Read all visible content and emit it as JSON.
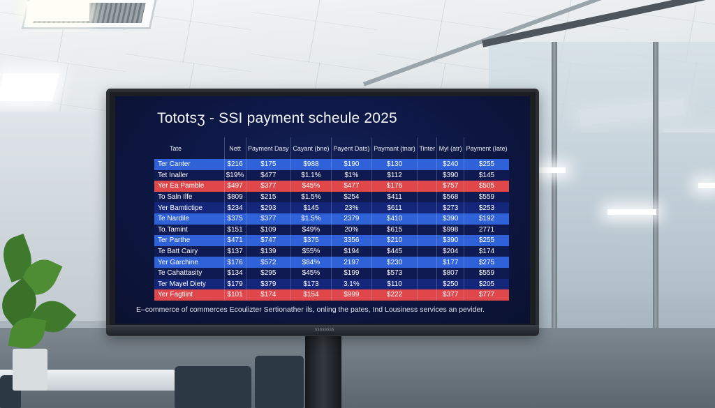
{
  "screen": {
    "title": "Tototsʒ - SSI payment scheule 2025",
    "footer": "E–commerce of commerces Ecoulizter Sertionather ils, onling the pates, Ind Lousiness services an pevider.",
    "monitor_brand": "ssssssss"
  },
  "table": {
    "headers": [
      "Tate",
      "Nett",
      "Payment Dasy",
      "Cayant (bne)",
      "Payent Dats)",
      "Paymant (tnar)",
      "Tinter",
      "Myl (atr)",
      "Payment (Iate)"
    ],
    "rows": [
      {
        "style": "blue",
        "cells": [
          "Ter Canter",
          "$216",
          "$175",
          "$988",
          "$190",
          "$130",
          "",
          "$240",
          "$255"
        ]
      },
      {
        "style": "dark",
        "cells": [
          "Tet Inaller",
          "$19%",
          "$477",
          "$1.1%",
          "$1%",
          "$112",
          "",
          "$390",
          "$145"
        ]
      },
      {
        "style": "red",
        "cells": [
          "Yer Ea Pamble",
          "$497",
          "$377",
          "$45%",
          "$477",
          "$176",
          "",
          "$757",
          "$505"
        ]
      },
      {
        "style": "dark",
        "cells": [
          "To Saln Ilfe",
          "$809",
          "$215",
          "$1.5%",
          "$254",
          "$411",
          "",
          "$568",
          "$559"
        ]
      },
      {
        "style": "navy",
        "cells": [
          "Yer Bamtictipe",
          "$234",
          "$293",
          "$145",
          "23%",
          "$611",
          "",
          "$273",
          "$253"
        ]
      },
      {
        "style": "blue",
        "cells": [
          "Te Nardile",
          "$375",
          "$377",
          "$1.5%",
          "2379",
          "$410",
          "",
          "$390",
          "$192"
        ]
      },
      {
        "style": "dark",
        "cells": [
          "To.Tamint",
          "$151",
          "$109",
          "$49%",
          "20%",
          "$615",
          "",
          "$998",
          "2771"
        ]
      },
      {
        "style": "blue",
        "cells": [
          "Ter Parthe",
          "$471",
          "$747",
          "$375",
          "3356",
          "$210",
          "",
          "$390",
          "$255"
        ]
      },
      {
        "style": "dark",
        "cells": [
          "Te Batt Cairy",
          "$137",
          "$139",
          "$55%",
          "$194",
          "$445",
          "",
          "$204",
          "$174"
        ]
      },
      {
        "style": "blue",
        "cells": [
          "Yer Garchine",
          "$176",
          "$572",
          "$84%",
          "2197",
          "$230",
          "",
          "$177",
          "$275"
        ]
      },
      {
        "style": "dark",
        "cells": [
          "Te Cahattasity",
          "$134",
          "$295",
          "$45%",
          "$199",
          "$573",
          "",
          "$807",
          "$559"
        ]
      },
      {
        "style": "navy",
        "cells": [
          "Ter Mayel Diety",
          "$179",
          "$379",
          "$173",
          "3.1%",
          "$110",
          "",
          "$250",
          "$205"
        ]
      },
      {
        "style": "red",
        "cells": [
          "Yer Fagtiint",
          "$101",
          "$174",
          "$154",
          "$999",
          "$222",
          "",
          "$377",
          "$777"
        ]
      }
    ]
  }
}
